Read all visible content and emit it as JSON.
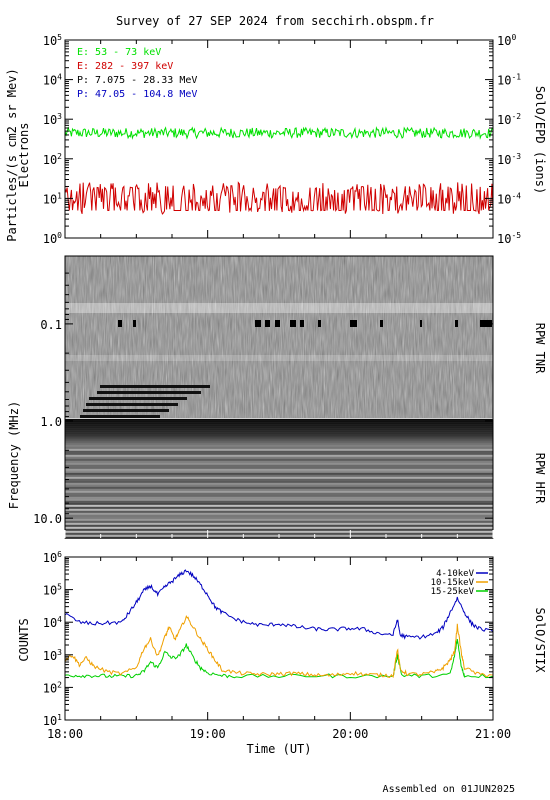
{
  "title": "Survey of 27 SEP 2024 from secchirh.obspm.fr",
  "footer": "Assembled on 01JUN2025",
  "colors": {
    "green": "#00e000",
    "red": "#d00000",
    "black": "#000000",
    "blue": "#0000c0",
    "orange": "#f0a000"
  },
  "chart_data": [
    {
      "type": "line",
      "panel": "particles",
      "ylabel": "Particles/(s cm2 sr Mev)",
      "ylabel2": "Electrons",
      "right_label": "SolO/EPD (ions)",
      "yscale": "log",
      "ylim": [
        1,
        100000
      ],
      "ylim_right": [
        1e-05,
        1
      ],
      "y_ticks": [
        {
          "base": "10",
          "exp": "0",
          "value": 1
        },
        {
          "base": "10",
          "exp": "1",
          "value": 10
        },
        {
          "base": "10",
          "exp": "2",
          "value": 100
        },
        {
          "base": "10",
          "exp": "3",
          "value": 1000
        },
        {
          "base": "10",
          "exp": "4",
          "value": 10000
        },
        {
          "base": "10",
          "exp": "5",
          "value": 100000
        }
      ],
      "y_ticks_right": [
        {
          "base": "10",
          "exp": "-5",
          "value": 1e-05
        },
        {
          "base": "10",
          "exp": "-4",
          "value": 0.0001
        },
        {
          "base": "10",
          "exp": "-3",
          "value": 0.001
        },
        {
          "base": "10",
          "exp": "-2",
          "value": 0.01
        },
        {
          "base": "10",
          "exp": "-1",
          "value": 0.1
        },
        {
          "base": "10",
          "exp": "0",
          "value": 1
        }
      ],
      "legend": [
        {
          "name": "E: 53 - 73 keV",
          "color": "#00e000"
        },
        {
          "name": "E: 282 - 397 keV",
          "color": "#d00000"
        },
        {
          "name": "P: 7.075 - 28.33 MeV",
          "color": "#000000"
        },
        {
          "name": "P: 47.05 - 104.8 MeV",
          "color": "#0000c0"
        }
      ],
      "series": [
        {
          "name": "E: 53 - 73 keV",
          "color": "#00e000",
          "level": 450,
          "spread": 0.13
        },
        {
          "name": "E: 282 - 397 keV",
          "color": "#d00000",
          "level": 9,
          "spread": 0.35
        }
      ],
      "xlim_hours": [
        18,
        21
      ]
    },
    {
      "type": "heatmap",
      "panel": "radio",
      "ylabel": "Frequency (MHz)",
      "right_label_top": "RPW TNR",
      "right_label_bottom": "RPW HFR",
      "yscale": "log",
      "ylim": [
        0.02,
        16
      ],
      "y_ticks": [
        {
          "label": "0.1",
          "value": 0.1
        },
        {
          "label": "1.0",
          "value": 1.0
        },
        {
          "label": "10.0",
          "value": 10.0
        }
      ],
      "tnr_hfr_boundary_mhz": 0.95,
      "xlim_hours": [
        18,
        21
      ]
    },
    {
      "type": "line",
      "panel": "stix",
      "ylabel": "COUNTS",
      "right_label": "SolO/STIX",
      "yscale": "log",
      "ylim": [
        10,
        1000000
      ],
      "y_ticks": [
        {
          "base": "10",
          "exp": "1",
          "value": 10
        },
        {
          "base": "10",
          "exp": "2",
          "value": 100
        },
        {
          "base": "10",
          "exp": "3",
          "value": 1000
        },
        {
          "base": "10",
          "exp": "4",
          "value": 10000
        },
        {
          "base": "10",
          "exp": "5",
          "value": 100000
        },
        {
          "base": "10",
          "exp": "6",
          "value": 1000000
        }
      ],
      "xlabel": "Time (UT)",
      "x_ticks": [
        {
          "label": "18:00",
          "value": 18
        },
        {
          "label": "19:00",
          "value": 19
        },
        {
          "label": "20:00",
          "value": 20
        },
        {
          "label": "21:00",
          "value": 21
        }
      ],
      "xlim_hours": [
        18,
        21
      ],
      "series": [
        {
          "name": "4-10keV",
          "color": "#0000c0",
          "x": [
            18.0,
            18.1,
            18.2,
            18.3,
            18.4,
            18.45,
            18.5,
            18.55,
            18.6,
            18.65,
            18.7,
            18.75,
            18.8,
            18.85,
            18.9,
            18.95,
            19.0,
            19.05,
            19.1,
            19.2,
            19.3,
            19.4,
            19.5,
            19.6,
            19.7,
            19.8,
            19.9,
            20.0,
            20.1,
            20.2,
            20.3,
            20.33,
            20.35,
            20.4,
            20.5,
            20.6,
            20.65,
            20.7,
            20.75,
            20.8,
            20.85,
            20.9,
            21.0
          ],
          "y": [
            18000,
            10000,
            9000,
            9500,
            10000,
            20000,
            40000,
            90000,
            130000,
            70000,
            120000,
            180000,
            270000,
            390000,
            260000,
            140000,
            70000,
            30000,
            20000,
            12000,
            9000,
            8000,
            9000,
            7500,
            6500,
            6000,
            6000,
            6500,
            6000,
            4500,
            4200,
            12000,
            4000,
            3500,
            3500,
            4500,
            7000,
            20000,
            55000,
            20000,
            9000,
            6500,
            5000
          ]
        },
        {
          "name": "10-15keV",
          "color": "#f0a000",
          "x": [
            18.0,
            18.05,
            18.1,
            18.15,
            18.2,
            18.3,
            18.4,
            18.5,
            18.55,
            18.6,
            18.65,
            18.7,
            18.73,
            18.77,
            18.8,
            18.85,
            18.9,
            18.95,
            19.0,
            19.05,
            19.1,
            19.2,
            19.3,
            19.4,
            19.5,
            19.6,
            19.7,
            19.8,
            19.9,
            20.0,
            20.1,
            20.2,
            20.3,
            20.33,
            20.35,
            20.4,
            20.5,
            20.6,
            20.65,
            20.7,
            20.73,
            20.75,
            20.78,
            20.8,
            20.9,
            21.0
          ],
          "y": [
            700,
            1000,
            500,
            800,
            450,
            300,
            260,
            400,
            1500,
            3000,
            900,
            3500,
            7000,
            3000,
            5000,
            15000,
            7000,
            3000,
            1500,
            700,
            350,
            280,
            260,
            250,
            260,
            270,
            250,
            230,
            240,
            280,
            250,
            240,
            230,
            1500,
            350,
            260,
            250,
            300,
            400,
            700,
            1200,
            8000,
            1000,
            400,
            250,
            240
          ]
        },
        {
          "name": "15-25keV",
          "color": "#00d000",
          "x": [
            18.0,
            18.1,
            18.2,
            18.3,
            18.4,
            18.5,
            18.55,
            18.6,
            18.65,
            18.7,
            18.75,
            18.8,
            18.85,
            18.9,
            18.95,
            19.0,
            19.1,
            19.2,
            19.5,
            19.8,
            20.0,
            20.3,
            20.33,
            20.36,
            20.5,
            20.7,
            20.73,
            20.75,
            20.78,
            20.8,
            21.0
          ],
          "y": [
            240,
            230,
            230,
            220,
            220,
            230,
            300,
            600,
            400,
            1200,
            800,
            900,
            2000,
            800,
            400,
            280,
            230,
            220,
            220,
            230,
            220,
            220,
            1000,
            240,
            220,
            250,
            900,
            3000,
            400,
            230,
            220
          ]
        }
      ]
    }
  ]
}
